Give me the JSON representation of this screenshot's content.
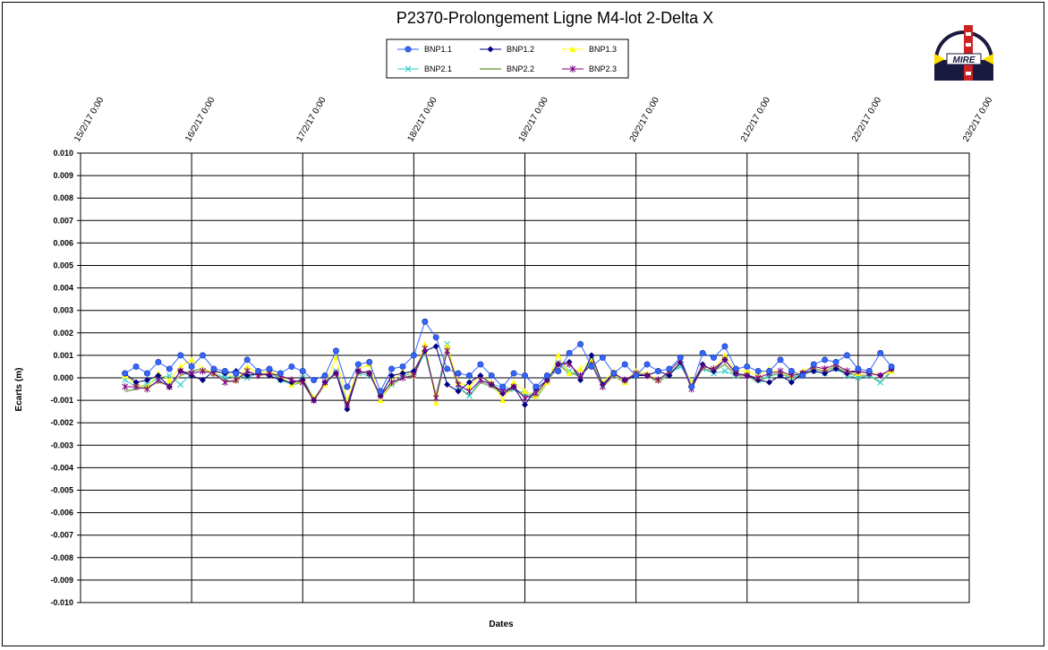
{
  "chart_data": {
    "type": "line",
    "title": "P2370-Prolongement  Ligne  M4-lot  2-Delta  X",
    "xlabel": "Dates",
    "ylabel": "Ecarts (m)",
    "ylim": [
      -0.01,
      0.01
    ],
    "y_ticks": [
      "0.010",
      "0.009",
      "0.008",
      "0.007",
      "0.006",
      "0.005",
      "0.004",
      "0.003",
      "0.002",
      "0.001",
      "0.000",
      "-0.001",
      "-0.002",
      "-0.003",
      "-0.004",
      "-0.005",
      "-0.006",
      "-0.007",
      "-0.008",
      "-0.009",
      "-0.010"
    ],
    "x_ticks": [
      "15/2/17 0:00",
      "16/2/17 0:00",
      "17/2/17 0:00",
      "18/2/17 0:00",
      "19/2/17 0:00",
      "20/2/17 0:00",
      "21/2/17 0:00",
      "22/2/17 0:00",
      "23/2/17 0:00"
    ],
    "x_days": [
      0.4,
      0.5,
      0.6,
      0.7,
      0.8,
      0.9,
      1.0,
      1.1,
      1.2,
      1.3,
      1.4,
      1.5,
      1.6,
      1.7,
      1.8,
      1.9,
      2.0,
      2.1,
      2.2,
      2.3,
      2.4,
      2.5,
      2.6,
      2.7,
      2.8,
      2.9,
      3.0,
      3.1,
      3.2,
      3.3,
      3.4,
      3.5,
      3.6,
      3.7,
      3.8,
      3.9,
      4.0,
      4.1,
      4.2,
      4.3,
      4.4,
      4.5,
      4.6,
      4.7,
      4.8,
      4.9,
      5.0,
      5.1,
      5.2,
      5.3,
      5.4,
      5.5,
      5.6,
      5.7,
      5.8,
      5.9,
      6.0,
      6.1,
      6.2,
      6.3,
      6.4,
      6.5,
      6.6,
      6.7,
      6.8,
      6.9,
      7.0,
      7.1,
      7.2,
      7.3
    ],
    "grid": true,
    "legend_position": "top-center",
    "series": [
      {
        "name": "BNP1.1",
        "color": "#3366ff",
        "marker": "circle",
        "values": [
          0.0002,
          0.0005,
          0.0002,
          0.0007,
          0.0004,
          0.001,
          0.0005,
          0.001,
          0.0004,
          0.0003,
          0.0002,
          0.0008,
          0.0003,
          0.0004,
          0.0002,
          0.0005,
          0.0003,
          -0.0001,
          0.0001,
          0.0012,
          -0.0004,
          0.0006,
          0.0007,
          -0.0006,
          0.0004,
          0.0005,
          0.001,
          0.0025,
          0.0018,
          0.0004,
          0.0002,
          0.0001,
          0.0006,
          0.0001,
          -0.0004,
          0.0002,
          0.0001,
          -0.0004,
          0.0001,
          0.0003,
          0.0011,
          0.0015,
          0.0005,
          0.0009,
          0.0002,
          0.0006,
          0.0001,
          0.0006,
          0.0003,
          0.0004,
          0.0009,
          -0.0004,
          0.0011,
          0.0009,
          0.0014,
          0.0004,
          0.0005,
          0.0003,
          0.0003,
          0.0008,
          0.0003,
          0.0001,
          0.0006,
          0.0008,
          0.0007,
          0.001,
          0.0004,
          0.0003,
          0.0011,
          0.0005
        ]
      },
      {
        "name": "BNP1.2",
        "color": "#000080",
        "marker": "diamond",
        "values": [
          0.0002,
          -0.0002,
          -0.0001,
          0.0001,
          -0.0004,
          0.0003,
          0.0001,
          -0.0001,
          0.0003,
          0.0002,
          0.0003,
          0.0001,
          0.0002,
          0.0001,
          -0.0001,
          -0.0002,
          -0.0001,
          -0.001,
          -0.0002,
          0.0002,
          -0.0014,
          0.0003,
          0.0002,
          -0.0008,
          0.0001,
          0.0002,
          0.0003,
          0.0012,
          0.0014,
          -0.0003,
          -0.0006,
          -0.0002,
          0.0001,
          -0.0003,
          -0.0007,
          -0.0004,
          -0.0012,
          -0.0005,
          -0.0001,
          0.0006,
          0.0007,
          -0.0001,
          0.001,
          -0.0003,
          0.0002,
          -0.0001,
          0.0001,
          0.0001,
          0.0003,
          0.0001,
          0.0007,
          -0.0004,
          0.0006,
          0.0003,
          0.0008,
          0.0002,
          0.0001,
          -0.0001,
          -0.0002,
          0.0001,
          -0.0002,
          0.0002,
          0.0003,
          0.0002,
          0.0004,
          0.0002,
          0.0003,
          0.0002,
          0.0001,
          0.0004
        ]
      },
      {
        "name": "BNP1.3",
        "color": "#ffff00",
        "marker": "triangle",
        "values": [
          0.0001,
          -0.0003,
          -0.0004,
          0.0002,
          -0.0001,
          0.0005,
          0.0008,
          0.0004,
          0.0002,
          0.0003,
          -0.0001,
          0.0005,
          0.0002,
          0.0003,
          0.0001,
          -0.0003,
          -0.0001,
          -0.0009,
          -0.0003,
          0.0009,
          -0.001,
          0.0004,
          0.0006,
          -0.001,
          -0.0002,
          0.0003,
          0.0001,
          0.0015,
          -0.0011,
          0.0014,
          -0.0002,
          -0.0004,
          0.0001,
          -0.0002,
          -0.001,
          -0.0002,
          -0.0006,
          -0.0008,
          -0.0002,
          0.001,
          0.0002,
          0.0004,
          0.0008,
          -0.0002,
          0.0003,
          -0.0002,
          0.0003,
          0.0002,
          -0.0001,
          0.0003,
          0.0008,
          -0.0002,
          0.0005,
          0.0004,
          0.001,
          0.0003,
          0.0003,
          0.0001,
          0.0004,
          0.0002,
          0.0001,
          0.0003,
          0.0005,
          0.0004,
          0.0006,
          0.0003,
          0.0002,
          0.0003,
          0.0001,
          0.0003
        ]
      },
      {
        "name": "BNP2.1",
        "color": "#33cccc",
        "marker": "x",
        "values": [
          -0.0001,
          -0.0004,
          -0.0003,
          0.0,
          0.0001,
          -0.0003,
          0.0002,
          0.0003,
          0.0002,
          0.0,
          0.0001,
          0.0,
          0.0002,
          0.0003,
          -0.0001,
          -0.0003,
          0.0,
          -0.0009,
          -0.0003,
          0.0003,
          -0.0011,
          0.0002,
          0.0001,
          -0.0007,
          -0.0003,
          0.0001,
          0.0002,
          0.0011,
          -0.0009,
          0.0015,
          -0.0004,
          -0.0008,
          -0.0001,
          -0.0003,
          -0.0004,
          -0.0005,
          -0.0007,
          -0.0008,
          -0.0001,
          0.0007,
          0.0003,
          0.0001,
          0.0008,
          -0.0003,
          0.0002,
          -0.0001,
          0.0002,
          0.0001,
          -0.0001,
          0.0002,
          0.0005,
          -0.0002,
          0.0004,
          0.0002,
          0.0003,
          0.0001,
          0.0002,
          -0.0001,
          0.0001,
          0.0002,
          0.0,
          0.0002,
          0.0003,
          0.0002,
          0.0004,
          0.0001,
          0.0,
          0.0001,
          -0.0002,
          0.0003
        ]
      },
      {
        "name": "BNP2.2",
        "color": "#99bb77",
        "marker": "none",
        "values": [
          -0.0006,
          -0.0005,
          -0.0004,
          -0.0002,
          -0.0003,
          0.0001,
          0.0003,
          0.0004,
          0.0002,
          -0.0001,
          -0.0002,
          0.0003,
          0.0001,
          0.0002,
          0.0,
          -0.0003,
          -0.0002,
          -0.001,
          -0.0003,
          0.0003,
          -0.0012,
          0.0002,
          0.0003,
          -0.0009,
          -0.0003,
          0.0,
          0.0001,
          0.0012,
          -0.0008,
          0.0013,
          -0.0004,
          -0.0008,
          -0.0002,
          -0.0004,
          -0.0007,
          -0.0005,
          -0.0008,
          -0.0009,
          -0.0002,
          0.0006,
          0.0002,
          0.0001,
          0.0007,
          -0.0004,
          0.0001,
          -0.0002,
          0.0002,
          0.0001,
          -0.0002,
          0.0002,
          0.0006,
          -0.0003,
          0.0004,
          0.0003,
          0.0006,
          0.0001,
          0.0001,
          -0.0002,
          0.0001,
          0.0002,
          0.0,
          0.0001,
          0.0004,
          0.0003,
          0.0005,
          0.0002,
          0.0001,
          0.0001,
          -0.0002,
          0.0003
        ]
      },
      {
        "name": "BNP2.3",
        "color": "#800080",
        "marker": "star",
        "values": [
          -0.0004,
          -0.0004,
          -0.0005,
          -0.0001,
          -0.0004,
          0.0003,
          0.0002,
          0.0003,
          0.0002,
          -0.0002,
          -0.0001,
          0.0003,
          0.0001,
          0.0002,
          0.0001,
          -0.0001,
          -0.0002,
          -0.001,
          -0.0002,
          0.0002,
          -0.0012,
          0.0003,
          0.0002,
          -0.0008,
          -0.0002,
          0.0,
          0.0001,
          0.0013,
          -0.0009,
          0.0012,
          -0.0003,
          -0.0006,
          -0.0001,
          -0.0003,
          -0.0006,
          -0.0004,
          -0.0009,
          -0.0007,
          -0.0001,
          0.0006,
          0.0006,
          0.0001,
          0.0006,
          -0.0004,
          0.0002,
          -0.0001,
          0.0002,
          0.0001,
          -0.0001,
          0.0003,
          0.0008,
          -0.0005,
          0.0005,
          0.0004,
          0.0008,
          0.0002,
          0.0001,
          0.0,
          0.0002,
          0.0003,
          0.0001,
          0.0002,
          0.0005,
          0.0004,
          0.0006,
          0.0003,
          0.0003,
          0.0002,
          0.0001,
          0.0004
        ]
      }
    ]
  },
  "logo": {
    "text": "MIRE",
    "name": "MIRE logo"
  }
}
